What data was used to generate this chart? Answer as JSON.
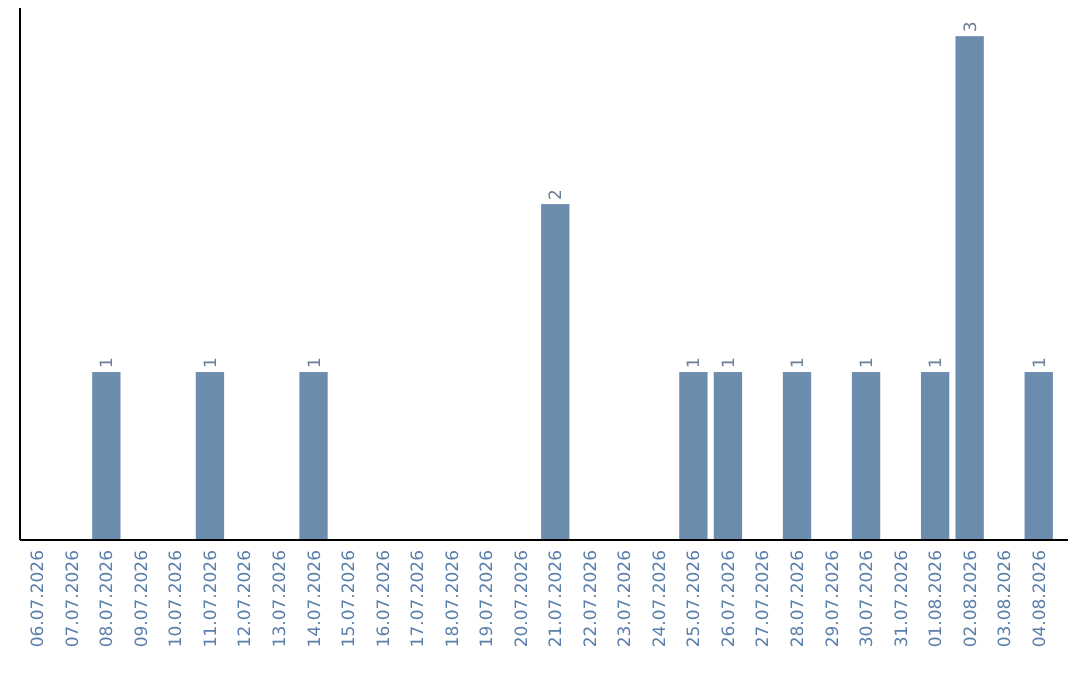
{
  "chart_data": {
    "type": "bar",
    "categories": [
      "06.07.2026",
      "07.07.2026",
      "08.07.2026",
      "09.07.2026",
      "10.07.2026",
      "11.07.2026",
      "12.07.2026",
      "13.07.2026",
      "14.07.2026",
      "15.07.2026",
      "16.07.2026",
      "17.07.2026",
      "18.07.2026",
      "19.07.2026",
      "20.07.2026",
      "21.07.2026",
      "22.07.2026",
      "23.07.2026",
      "24.07.2026",
      "25.07.2026",
      "26.07.2026",
      "27.07.2026",
      "28.07.2026",
      "29.07.2026",
      "30.07.2026",
      "31.07.2026",
      "01.08.2026",
      "02.08.2026",
      "03.08.2026",
      "04.08.2026"
    ],
    "values": [
      0,
      0,
      1,
      0,
      0,
      1,
      0,
      0,
      1,
      0,
      0,
      0,
      0,
      0,
      0,
      2,
      0,
      0,
      0,
      1,
      1,
      0,
      1,
      0,
      1,
      0,
      1,
      3,
      0,
      1
    ],
    "value_labels": [
      null,
      null,
      "1",
      null,
      null,
      "1",
      null,
      null,
      "1",
      null,
      null,
      null,
      null,
      null,
      null,
      "2",
      null,
      null,
      null,
      "1",
      "1",
      null,
      "1",
      null,
      "1",
      null,
      "1",
      "3",
      null,
      "1"
    ],
    "color": "#6b8cad",
    "tick_labels": "x"
  }
}
